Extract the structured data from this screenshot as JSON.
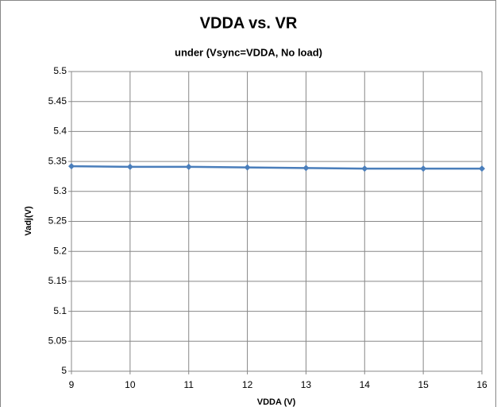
{
  "chart_data": {
    "type": "line",
    "title": "VDDA vs. VR",
    "subtitle": "under (Vsync=VDDA, No load)",
    "x_label": "VDDA (V)",
    "y_label": "Vadj(V)",
    "x": [
      9,
      10,
      11,
      12,
      13,
      14,
      15,
      16
    ],
    "values": [
      5.342,
      5.341,
      5.341,
      5.34,
      5.339,
      5.338,
      5.338,
      5.338
    ],
    "color": "#4a7ebb",
    "xlim": [
      9,
      16
    ],
    "xticks": [
      9,
      10,
      11,
      12,
      13,
      14,
      15,
      16
    ],
    "ylim": [
      5,
      5.5
    ],
    "yticks": [
      5,
      5.05,
      5.1,
      5.15,
      5.2,
      5.25,
      5.3,
      5.35,
      5.4,
      5.45,
      5.5
    ],
    "grid": true
  }
}
